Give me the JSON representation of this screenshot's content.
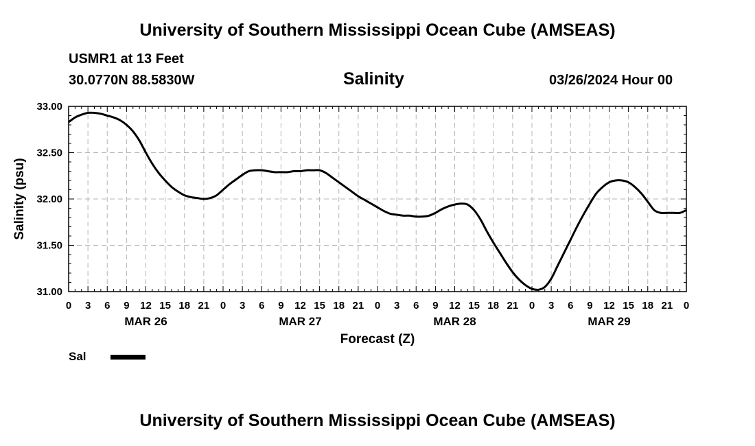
{
  "header": {
    "title_top": "University of Southern Mississippi Ocean Cube (AMSEAS)",
    "station": "USMR1 at 13 Feet",
    "coords": "30.0770N  88.5830W",
    "parameter": "Salinity",
    "timestamp": "03/26/2024 Hour 00",
    "title_bottom": "University of Southern Mississippi Ocean Cube (AMSEAS)"
  },
  "legend": {
    "label": "Sal"
  },
  "chart_data": {
    "type": "line",
    "title": "Salinity",
    "xlabel": "Forecast (Z)",
    "ylabel": "Salinity (psu)",
    "x_unit": "forecast hour from 03/26/2024 00Z",
    "xlim": [
      0,
      96
    ],
    "ylim": [
      31.0,
      33.0
    ],
    "yticks": [
      "31.00",
      "31.50",
      "32.00",
      "32.50",
      "33.00"
    ],
    "ytick_values": [
      31.0,
      31.5,
      32.0,
      32.5,
      33.0
    ],
    "xticks": [
      "0",
      "3",
      "6",
      "9",
      "12",
      "15",
      "18",
      "21",
      "0",
      "3",
      "6",
      "9",
      "12",
      "15",
      "18",
      "21",
      "0",
      "3",
      "6",
      "9",
      "12",
      "15",
      "18",
      "21",
      "0",
      "3",
      "6",
      "9",
      "12",
      "15",
      "18",
      "21",
      "0"
    ],
    "day_labels": [
      {
        "label": "MAR 26",
        "hour": 12
      },
      {
        "label": "MAR 27",
        "hour": 36
      },
      {
        "label": "MAR 28",
        "hour": 60
      },
      {
        "label": "MAR 29",
        "hour": 84
      }
    ],
    "grid": true,
    "series": [
      {
        "name": "Sal",
        "color": "#000000",
        "x": [
          0,
          1,
          2,
          3,
          4,
          5,
          6,
          7,
          8,
          9,
          10,
          11,
          12,
          13,
          14,
          15,
          16,
          17,
          18,
          19,
          20,
          21,
          22,
          23,
          24,
          25,
          26,
          27,
          28,
          29,
          30,
          31,
          32,
          33,
          34,
          35,
          36,
          37,
          38,
          39,
          40,
          41,
          42,
          43,
          44,
          45,
          46,
          47,
          48,
          49,
          50,
          51,
          52,
          53,
          54,
          55,
          56,
          57,
          58,
          59,
          60,
          61,
          62,
          63,
          64,
          65,
          66,
          67,
          68,
          69,
          70,
          71,
          72,
          73,
          74,
          75,
          76,
          77,
          78,
          79,
          80,
          81,
          82,
          83,
          84,
          85,
          86,
          87,
          88,
          89,
          90,
          91,
          92,
          93,
          94,
          95,
          96
        ],
        "values": [
          32.83,
          32.88,
          32.91,
          32.93,
          32.93,
          32.92,
          32.9,
          32.88,
          32.85,
          32.8,
          32.73,
          32.63,
          32.5,
          32.38,
          32.28,
          32.2,
          32.13,
          32.08,
          32.04,
          32.02,
          32.01,
          32.0,
          32.01,
          32.04,
          32.1,
          32.16,
          32.21,
          32.26,
          32.3,
          32.31,
          32.31,
          32.3,
          32.29,
          32.29,
          32.29,
          32.3,
          32.3,
          32.31,
          32.31,
          32.31,
          32.28,
          32.23,
          32.18,
          32.13,
          32.08,
          32.03,
          31.99,
          31.95,
          31.91,
          31.87,
          31.84,
          31.83,
          31.82,
          31.82,
          31.81,
          31.81,
          31.82,
          31.85,
          31.89,
          31.92,
          31.94,
          31.95,
          31.94,
          31.88,
          31.78,
          31.65,
          31.53,
          31.42,
          31.31,
          31.21,
          31.13,
          31.07,
          31.03,
          31.02,
          31.05,
          31.14,
          31.28,
          31.42,
          31.56,
          31.7,
          31.83,
          31.95,
          32.06,
          32.13,
          32.18,
          32.2,
          32.2,
          32.18,
          32.13,
          32.06,
          31.97,
          31.88,
          31.85,
          31.85,
          31.85,
          31.85,
          31.88
        ]
      }
    ]
  }
}
